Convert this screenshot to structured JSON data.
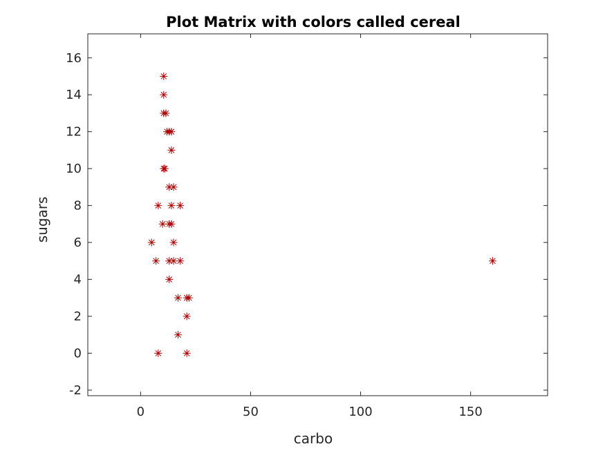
{
  "chart_data": {
    "type": "scatter",
    "title": "Plot Matrix with colors called cereal",
    "xlabel": "carbo",
    "ylabel": "sugars",
    "xlim": [
      -24,
      185
    ],
    "ylim": [
      -2.3,
      17.3
    ],
    "xticks": [
      0,
      50,
      100,
      150
    ],
    "yticks": [
      -2,
      0,
      2,
      4,
      6,
      8,
      10,
      12,
      14,
      16
    ],
    "grid": false,
    "marker": "asterisk",
    "marker_color": "#aa0000",
    "points": [
      {
        "x": 10.5,
        "y": 15
      },
      {
        "x": 10.5,
        "y": 14
      },
      {
        "x": 10.5,
        "y": 13
      },
      {
        "x": 11.5,
        "y": 13
      },
      {
        "x": 12,
        "y": 12
      },
      {
        "x": 13,
        "y": 12
      },
      {
        "x": 14,
        "y": 12
      },
      {
        "x": 14,
        "y": 11
      },
      {
        "x": 10.5,
        "y": 10
      },
      {
        "x": 11,
        "y": 10
      },
      {
        "x": 13,
        "y": 9
      },
      {
        "x": 15,
        "y": 9
      },
      {
        "x": 8,
        "y": 8
      },
      {
        "x": 14,
        "y": 8
      },
      {
        "x": 18,
        "y": 8
      },
      {
        "x": 10,
        "y": 7
      },
      {
        "x": 13,
        "y": 7
      },
      {
        "x": 14,
        "y": 7
      },
      {
        "x": 5,
        "y": 6
      },
      {
        "x": 15,
        "y": 6
      },
      {
        "x": 7,
        "y": 5
      },
      {
        "x": 13,
        "y": 5
      },
      {
        "x": 15,
        "y": 5
      },
      {
        "x": 18,
        "y": 5
      },
      {
        "x": 13,
        "y": 4
      },
      {
        "x": 17,
        "y": 3
      },
      {
        "x": 21,
        "y": 3
      },
      {
        "x": 22,
        "y": 3
      },
      {
        "x": 21,
        "y": 2
      },
      {
        "x": 17,
        "y": 1
      },
      {
        "x": 8,
        "y": 0
      },
      {
        "x": 21,
        "y": 0
      },
      {
        "x": 160,
        "y": 5
      }
    ]
  }
}
